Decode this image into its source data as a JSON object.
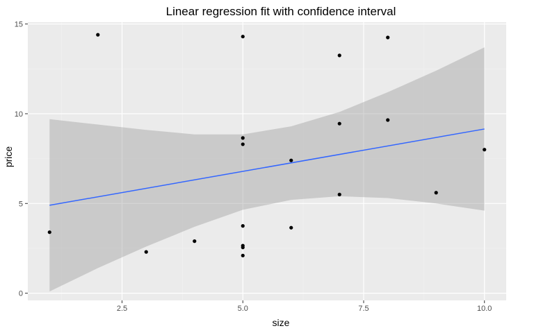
{
  "chart_data": {
    "type": "scatter",
    "title": "Linear regression fit with confidence interval",
    "xlabel": "size",
    "ylabel": "price",
    "xlim": [
      0.55,
      10.45
    ],
    "ylim": [
      -0.4,
      15.1
    ],
    "x_ticks": [
      2.5,
      5.0,
      7.5,
      10.0
    ],
    "x_tick_labels": [
      "2.5",
      "5.0",
      "7.5",
      "10.0"
    ],
    "y_ticks": [
      0,
      5,
      10,
      15
    ],
    "y_tick_labels": [
      "0",
      "5",
      "10",
      "15"
    ],
    "grid": true,
    "legend": "none",
    "series": [
      {
        "points": [
          {
            "x": 1,
            "y": 3.4
          },
          {
            "x": 2,
            "y": 14.4
          },
          {
            "x": 3,
            "y": 2.3
          },
          {
            "x": 4,
            "y": 2.9
          },
          {
            "x": 5,
            "y": 14.3
          },
          {
            "x": 5,
            "y": 8.65
          },
          {
            "x": 5,
            "y": 8.3
          },
          {
            "x": 5,
            "y": 3.75
          },
          {
            "x": 5,
            "y": 2.65
          },
          {
            "x": 5,
            "y": 2.55
          },
          {
            "x": 5,
            "y": 2.1
          },
          {
            "x": 6,
            "y": 7.4
          },
          {
            "x": 6,
            "y": 3.65
          },
          {
            "x": 7,
            "y": 13.25
          },
          {
            "x": 7,
            "y": 9.45
          },
          {
            "x": 7,
            "y": 5.5
          },
          {
            "x": 8,
            "y": 14.25
          },
          {
            "x": 8,
            "y": 9.65
          },
          {
            "x": 9,
            "y": 5.6
          },
          {
            "x": 10,
            "y": 8.0
          }
        ]
      }
    ],
    "fit_line": {
      "x": [
        1,
        10
      ],
      "y": [
        4.9,
        9.15
      ],
      "color": "#3366ff"
    },
    "confidence_band": {
      "x": [
        1,
        2,
        3,
        4,
        5,
        6,
        7,
        8,
        9,
        10
      ],
      "upper": [
        9.7,
        9.4,
        9.1,
        8.85,
        8.85,
        9.3,
        10.1,
        11.2,
        12.4,
        13.7
      ],
      "lower": [
        0.1,
        1.4,
        2.6,
        3.7,
        4.65,
        5.2,
        5.4,
        5.3,
        5.0,
        4.6
      ],
      "color": "#999999"
    },
    "colors": {
      "panel_background": "#ebebeb",
      "grid_major": "#ffffff",
      "grid_minor": "#f2f2f2",
      "point": "#000000"
    }
  }
}
